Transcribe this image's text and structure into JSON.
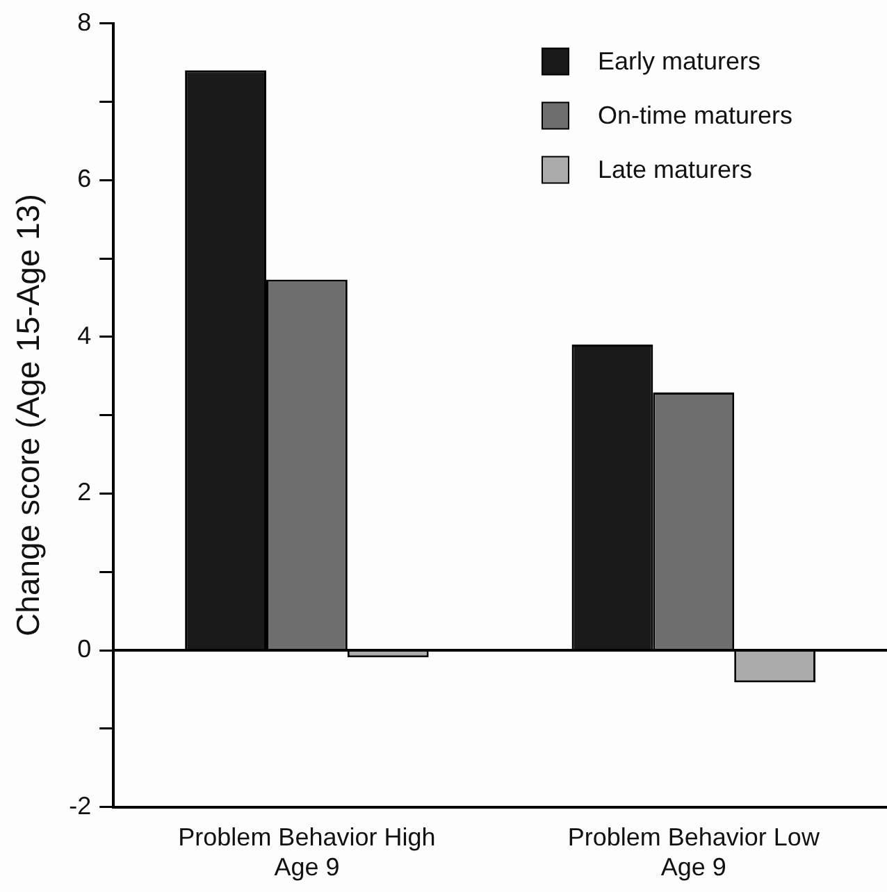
{
  "chart_data": {
    "type": "bar",
    "ylabel": "Change score (Age 15-Age 13)",
    "categories": [
      "Problem Behavior High\nAge 9",
      "Problem Behavior Low\nAge 9"
    ],
    "series": [
      {
        "name": "Early maturers",
        "color": "#1a1a1a",
        "values": [
          7.4,
          3.9
        ]
      },
      {
        "name": "On-time maturers",
        "color": "#6e6e6e",
        "values": [
          4.73,
          3.29
        ]
      },
      {
        "name": "Late maturers",
        "color": "#ababab",
        "values": [
          -0.09,
          -0.41
        ]
      }
    ],
    "ylim": [
      -2,
      8
    ],
    "yticks": [
      -2,
      {
        "value": -1,
        "label": null
      },
      0,
      {
        "value": 1,
        "label": null
      },
      2,
      {
        "value": 3,
        "label": null
      },
      4,
      {
        "value": 5,
        "label": null
      },
      6,
      {
        "value": 7,
        "label": null
      },
      8
    ],
    "ref_lines": [
      {
        "axis": "y",
        "value": 0,
        "color": "#000000"
      }
    ],
    "grid": false,
    "legend": "top right"
  }
}
